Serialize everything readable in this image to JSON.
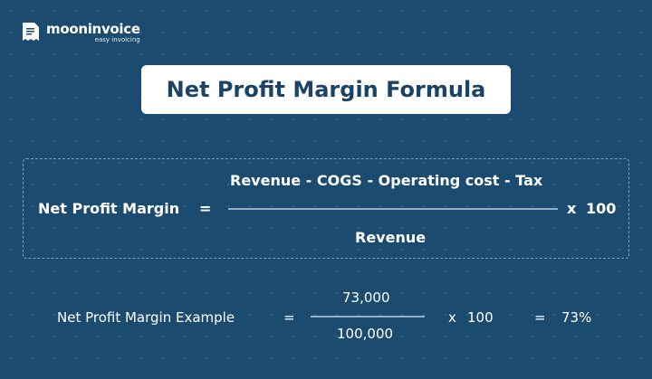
{
  "logo": {
    "brand": "mooninvoice",
    "tagline": "easy invoicing"
  },
  "title": "Net Profit Margin Formula",
  "formula": {
    "label": "Net Profit Margin",
    "equals": "=",
    "numerator": "Revenue - COGS - Operating cost - Tax",
    "denominator": "Revenue",
    "times": "x",
    "multiplier": "100"
  },
  "example": {
    "label": "Net Profit Margin Example",
    "equals": "=",
    "numerator": "73,000",
    "denominator": "100,000",
    "times": "x",
    "multiplier": "100",
    "equals2": "=",
    "result": "73%"
  },
  "colors": {
    "background": "#1b4b6f",
    "title_text": "#1b4366"
  }
}
